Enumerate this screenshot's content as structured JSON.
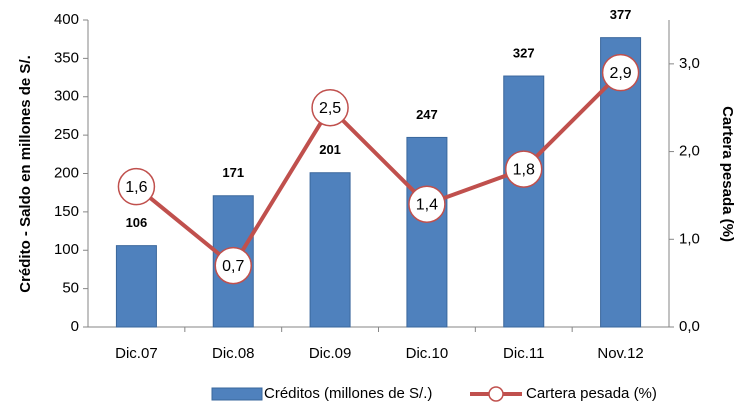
{
  "chart_data": {
    "type": "bar",
    "categories": [
      "Dic.07",
      "Dic.08",
      "Dic.09",
      "Dic.10",
      "Dic.11",
      "Nov.12"
    ],
    "series": [
      {
        "name": "Créditos (millones de S/.)",
        "color": "#4f81bd",
        "values": [
          106,
          171,
          201,
          247,
          327,
          377
        ]
      },
      {
        "name": "Cartera pesada (%)",
        "color": "#c0504d",
        "type": "line",
        "axis": "y2",
        "values": [
          1.6,
          0.7,
          2.5,
          1.4,
          1.8,
          2.9
        ],
        "value_labels": [
          "1,6",
          "0,7",
          "2,5",
          "1,4",
          "1,8",
          "2,9"
        ]
      }
    ],
    "y_label": "Crédito - Saldo en millones de S/.",
    "y2_label": "Cartera pesada (%)",
    "ylim": [
      0,
      400
    ],
    "yticks": [
      0,
      50,
      100,
      150,
      200,
      250,
      300,
      350,
      400
    ],
    "y2lim": [
      0,
      3.5
    ],
    "y2ticks": [
      {
        "value": 0,
        "label": "0,0"
      },
      {
        "value": 1,
        "label": "1,0"
      },
      {
        "value": 2,
        "label": "2,0"
      },
      {
        "value": 3,
        "label": "3,0"
      }
    ],
    "legend": "bottom"
  }
}
